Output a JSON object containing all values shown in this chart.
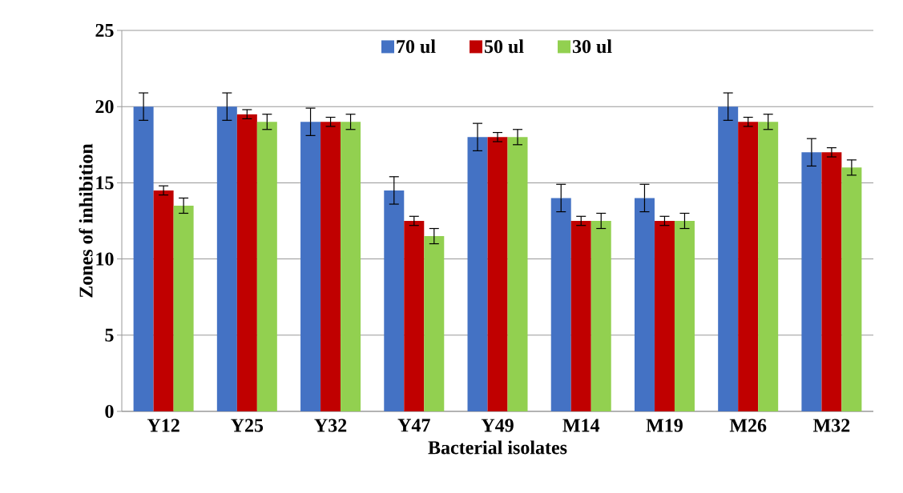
{
  "chart_data": {
    "type": "bar",
    "xlabel": "Bacterial isolates",
    "ylabel": "Zones of inhibition",
    "categories": [
      "Y12",
      "Y25",
      "Y32",
      "Y47",
      "Y49",
      "M14",
      "M19",
      "M26",
      "M32"
    ],
    "series": [
      {
        "name": "70 ul",
        "color": "#4472c4",
        "values": [
          20,
          20,
          19,
          14.5,
          18,
          14,
          14,
          20,
          17
        ],
        "errors": [
          0.9,
          0.9,
          0.9,
          0.9,
          0.9,
          0.9,
          0.9,
          0.9,
          0.9
        ]
      },
      {
        "name": "50 ul",
        "color": "#c00000",
        "values": [
          14.5,
          19.5,
          19,
          12.5,
          18,
          12.5,
          12.5,
          19,
          17
        ],
        "errors": [
          0.3,
          0.3,
          0.3,
          0.3,
          0.3,
          0.3,
          0.3,
          0.3,
          0.3
        ]
      },
      {
        "name": "30 ul",
        "color": "#92d050",
        "values": [
          13.5,
          19,
          19,
          11.5,
          18,
          12.5,
          12.5,
          19,
          16
        ],
        "errors": [
          0.5,
          0.5,
          0.5,
          0.5,
          0.5,
          0.5,
          0.5,
          0.5,
          0.5
        ]
      }
    ],
    "ylim": [
      0,
      25
    ],
    "yticks": [
      0,
      5,
      10,
      15,
      20,
      25
    ],
    "grid": "y",
    "legend": "top"
  }
}
